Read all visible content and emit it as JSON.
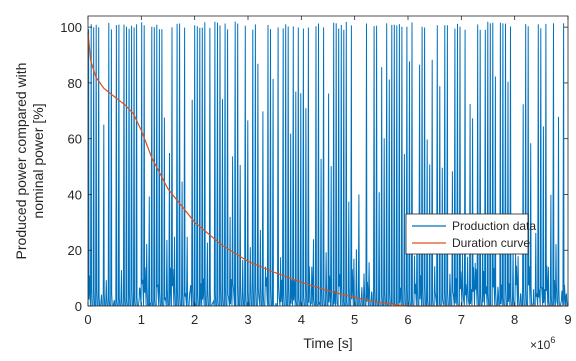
{
  "chart_data": {
    "type": "line",
    "title": "",
    "xlabel": "Time [s]",
    "ylabel_lines": [
      "Produced power compared with",
      "nominal power [%]"
    ],
    "x_exponent_base": "×10",
    "x_exponent_power": "6",
    "xlim": [
      0,
      9
    ],
    "ylim": [
      0,
      104
    ],
    "x_ticks": [
      0,
      1,
      2,
      3,
      4,
      5,
      6,
      7,
      8,
      9
    ],
    "y_ticks": [
      0,
      20,
      40,
      60,
      80,
      100
    ],
    "grid": false,
    "legend_position": "lower-right",
    "series": [
      {
        "name": "Production data",
        "color": "#0072BD",
        "style": "rapidly oscillating signal between 0 and about 102",
        "approx_peak_count": 190,
        "min": 0,
        "max": 102
      },
      {
        "name": "Duration curve",
        "color": "#D95319",
        "x": [
          0,
          0.05,
          0.15,
          0.3,
          0.5,
          0.7,
          0.85,
          1.0,
          1.2,
          1.5,
          2.0,
          2.5,
          3.0,
          3.5,
          4.0,
          4.5,
          5.0,
          5.5,
          5.8,
          6.0,
          7.0,
          8.0,
          8.9
        ],
        "y": [
          98,
          88,
          82,
          78,
          75,
          72,
          69,
          63,
          53,
          42,
          30,
          22,
          16,
          12,
          8.5,
          5.5,
          3,
          1.2,
          0.4,
          0,
          0,
          0,
          0
        ]
      }
    ]
  }
}
